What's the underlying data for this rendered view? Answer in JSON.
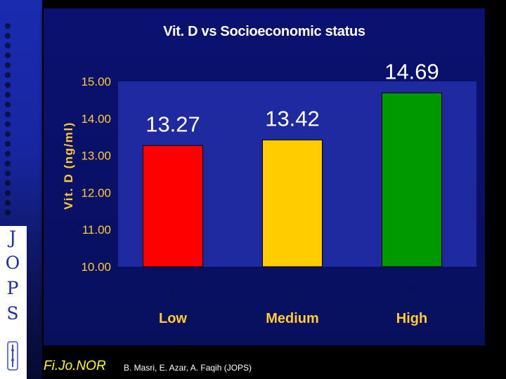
{
  "sidebar": {
    "letters": [
      "J",
      "O",
      "P",
      "S"
    ]
  },
  "chart_data": {
    "type": "bar",
    "title": "Vit. D vs Socioeconomic status",
    "ylabel": "Vit. D (ng/ml)",
    "xlabel": "",
    "categories": [
      "1",
      "2",
      "3"
    ],
    "category_labels": [
      "Low",
      "Medium",
      "High"
    ],
    "values": [
      13.27,
      13.42,
      14.69
    ],
    "data_labels": [
      "13.27",
      "13.42",
      "14.69"
    ],
    "bar_colors": [
      "#ff0000",
      "#ffcc00",
      "#009900"
    ],
    "ylim": [
      10,
      15
    ],
    "yticks": [
      "10.00",
      "11.00",
      "12.00",
      "13.00",
      "14.00",
      "15.00"
    ],
    "plot_background": "#1f2aa0",
    "grid": false,
    "legend": "none"
  },
  "footer": {
    "brand": "Fi.Jo.NOR",
    "credit": "B. Masri, E. Azar, A. Faqih (JOPS)"
  },
  "colors": {
    "axis_text": "#ffcc33",
    "category_text": "#ffcc33",
    "index_text": "#0a0f4a"
  }
}
